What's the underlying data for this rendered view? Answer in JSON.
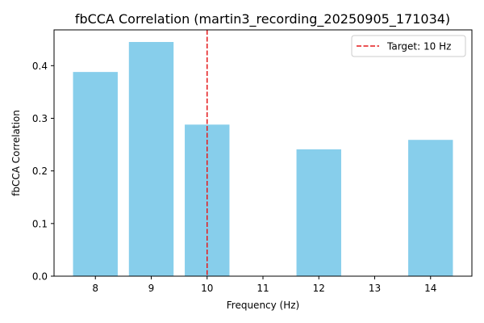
{
  "chart_data": {
    "type": "bar",
    "title": "fbCCA Correlation (martin3_recording_20250905_171034)",
    "xlabel": "Frequency (Hz)",
    "ylabel": "fbCCA Correlation",
    "x_ticks": [
      8,
      9,
      10,
      11,
      12,
      13,
      14
    ],
    "x_tick_labels": [
      "8",
      "9",
      "10",
      "11",
      "12",
      "13",
      "14"
    ],
    "xlim": [
      7.26,
      14.74
    ],
    "y_ticks": [
      0.0,
      0.1,
      0.2,
      0.3,
      0.4
    ],
    "y_tick_labels": [
      "0.0",
      "0.1",
      "0.2",
      "0.3",
      "0.4"
    ],
    "ylim": [
      0,
      0.468
    ],
    "bar_color": "#87CEEB",
    "bars": [
      {
        "x": 8,
        "value": 0.388
      },
      {
        "x": 9,
        "value": 0.445
      },
      {
        "x": 10,
        "value": 0.288
      },
      {
        "x": 12,
        "value": 0.241
      },
      {
        "x": 14,
        "value": 0.259
      }
    ],
    "bar_width": 0.8,
    "target_line": {
      "x": 10,
      "color": "#e41a1c",
      "style": "dashed",
      "label": "Target: 10 Hz"
    },
    "legend_position": "top-right",
    "grid": false
  }
}
